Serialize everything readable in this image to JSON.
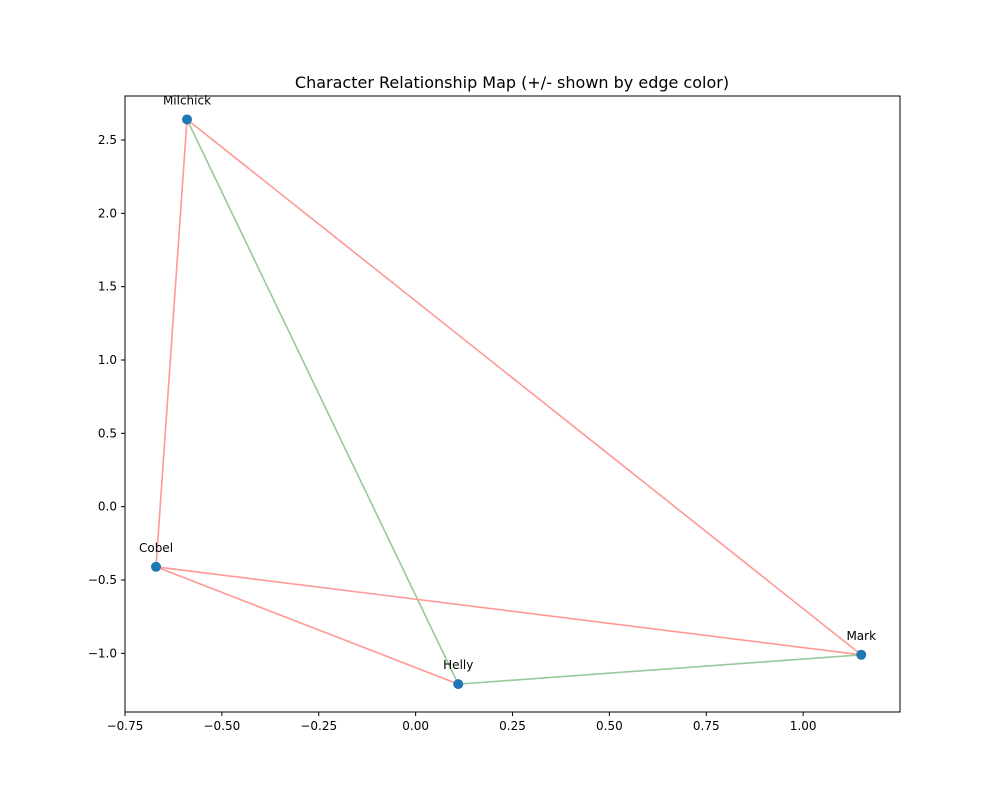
{
  "chart_data": {
    "type": "scatter",
    "subtype": "network-graph",
    "title": "Character Relationship Map (+/- shown by edge color)",
    "xlabel": "",
    "ylabel": "",
    "xlim": [
      -0.75,
      1.25
    ],
    "ylim": [
      -1.4,
      2.8
    ],
    "xticks": [
      -0.75,
      -0.5,
      -0.25,
      0.0,
      0.25,
      0.5,
      0.75,
      1.0
    ],
    "xtick_labels": [
      "−0.75",
      "−0.50",
      "−0.25",
      "0.00",
      "0.25",
      "0.50",
      "0.75",
      "1.00"
    ],
    "yticks": [
      -1.0,
      -0.5,
      0.0,
      0.5,
      1.0,
      1.5,
      2.0,
      2.5
    ],
    "ytick_labels": [
      "−1.0",
      "−0.5",
      "0.0",
      "0.5",
      "1.0",
      "1.5",
      "2.0",
      "2.5"
    ],
    "grid": false,
    "node_color": "#1f77b4",
    "positive_color": "#98c999",
    "negative_color": "#ff9896",
    "nodes": [
      {
        "name": "Milchick",
        "x": -0.59,
        "y": 2.64
      },
      {
        "name": "Cobel",
        "x": -0.67,
        "y": -0.41
      },
      {
        "name": "Helly",
        "x": 0.11,
        "y": -1.21
      },
      {
        "name": "Mark",
        "x": 1.15,
        "y": -1.01
      }
    ],
    "edges": [
      {
        "source": "Milchick",
        "target": "Cobel",
        "sign": "negative"
      },
      {
        "source": "Milchick",
        "target": "Mark",
        "sign": "negative"
      },
      {
        "source": "Milchick",
        "target": "Helly",
        "sign": "positive"
      },
      {
        "source": "Cobel",
        "target": "Mark",
        "sign": "negative"
      },
      {
        "source": "Cobel",
        "target": "Helly",
        "sign": "negative"
      },
      {
        "source": "Helly",
        "target": "Mark",
        "sign": "positive"
      }
    ]
  }
}
